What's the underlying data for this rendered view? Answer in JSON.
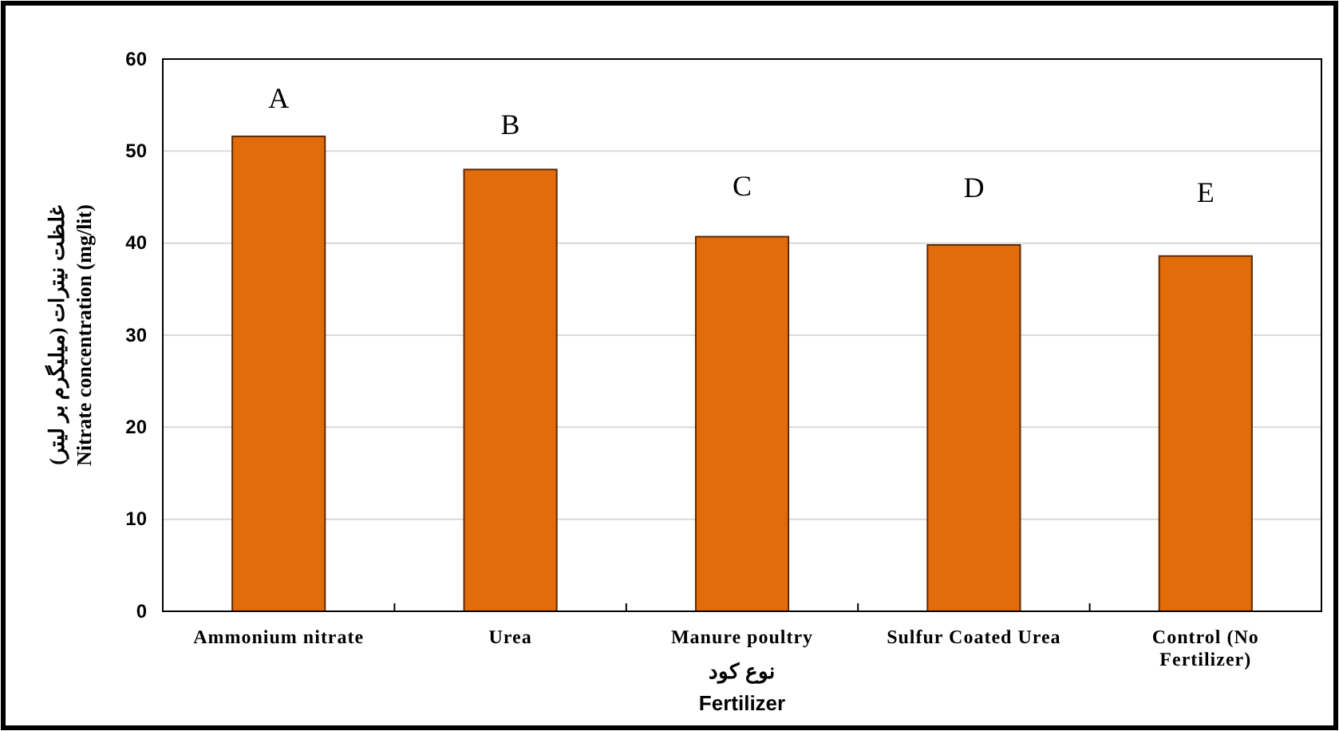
{
  "chart_data": {
    "type": "bar",
    "xlabel": "نوع کود\nFertilizer",
    "ylabel": "غلظت نیترات (میلیگرم بر لیتر)\nNitrate concentration (mg/lit)",
    "categories": [
      "Ammonium nitrate",
      "Urea",
      "Manure poultry",
      "Sulfur Coated Urea",
      "Control (No Fertilizer)"
    ],
    "values": [
      51.6,
      48.0,
      40.7,
      39.8,
      38.6
    ],
    "color": "#e36c0a",
    "ylim": [
      0,
      60
    ],
    "yticks": [
      0,
      10,
      20,
      30,
      40,
      50,
      60
    ],
    "grid": "y",
    "annotations": [
      "A",
      "B",
      "C",
      "D",
      "E"
    ]
  }
}
